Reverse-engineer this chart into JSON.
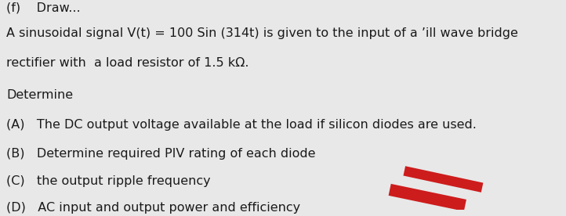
{
  "background_color": "#e8e8e8",
  "top_partial": "(f)",
  "line1a": "A sinusoidal signal V(t) = 100 Sin (314t) is given to the input of a  ",
  "line1b": "ill wave bridge",
  "line2": "rectifier with  a load resistor of 1.5 kΩ.",
  "line3": "Determine",
  "itemA": "(A)   The DC output voltage available at the load if silicon diodes are used.",
  "itemB": "(B)   Determine required PIV rating of each diode",
  "itemC": "(C)   the output ripple frequency",
  "itemD": "(D)   AC input and output power and efficiency",
  "font_size": 11.5,
  "text_color": "#1a1a1a",
  "red_shape_color": "#cc1111"
}
